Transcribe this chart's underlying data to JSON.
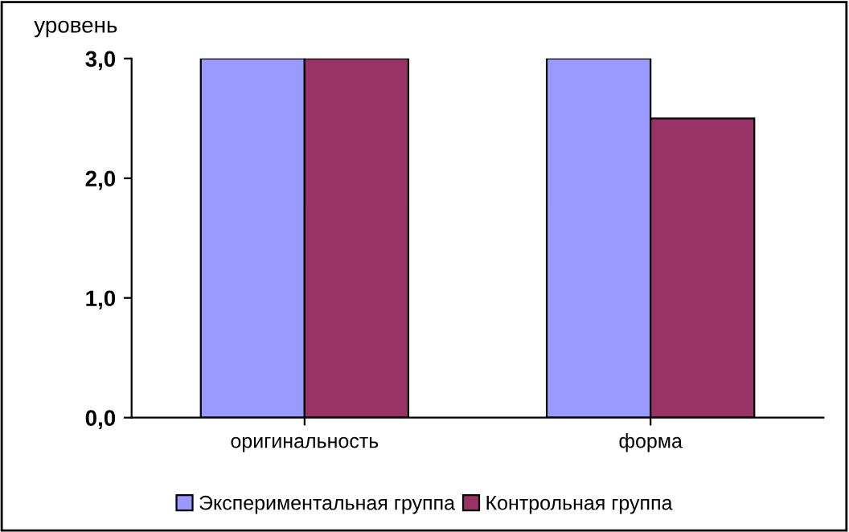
{
  "chart_data": {
    "type": "bar",
    "ylabel": "уровень",
    "categories": [
      "оригинальность",
      "форма"
    ],
    "series": [
      {
        "name": "Экспериментальная группа",
        "color": "#9999ff",
        "values": [
          3.0,
          3.0
        ]
      },
      {
        "name": "Контрольная группа",
        "color": "#993366",
        "values": [
          3.0,
          2.5
        ]
      }
    ],
    "ylim": [
      0,
      3
    ],
    "yticks": [
      {
        "value": 0,
        "label": "0,0"
      },
      {
        "value": 1,
        "label": "1,0"
      },
      {
        "value": 2,
        "label": "2,0"
      },
      {
        "value": 3,
        "label": "3,0"
      }
    ],
    "grid": false,
    "legend": "bottom"
  }
}
